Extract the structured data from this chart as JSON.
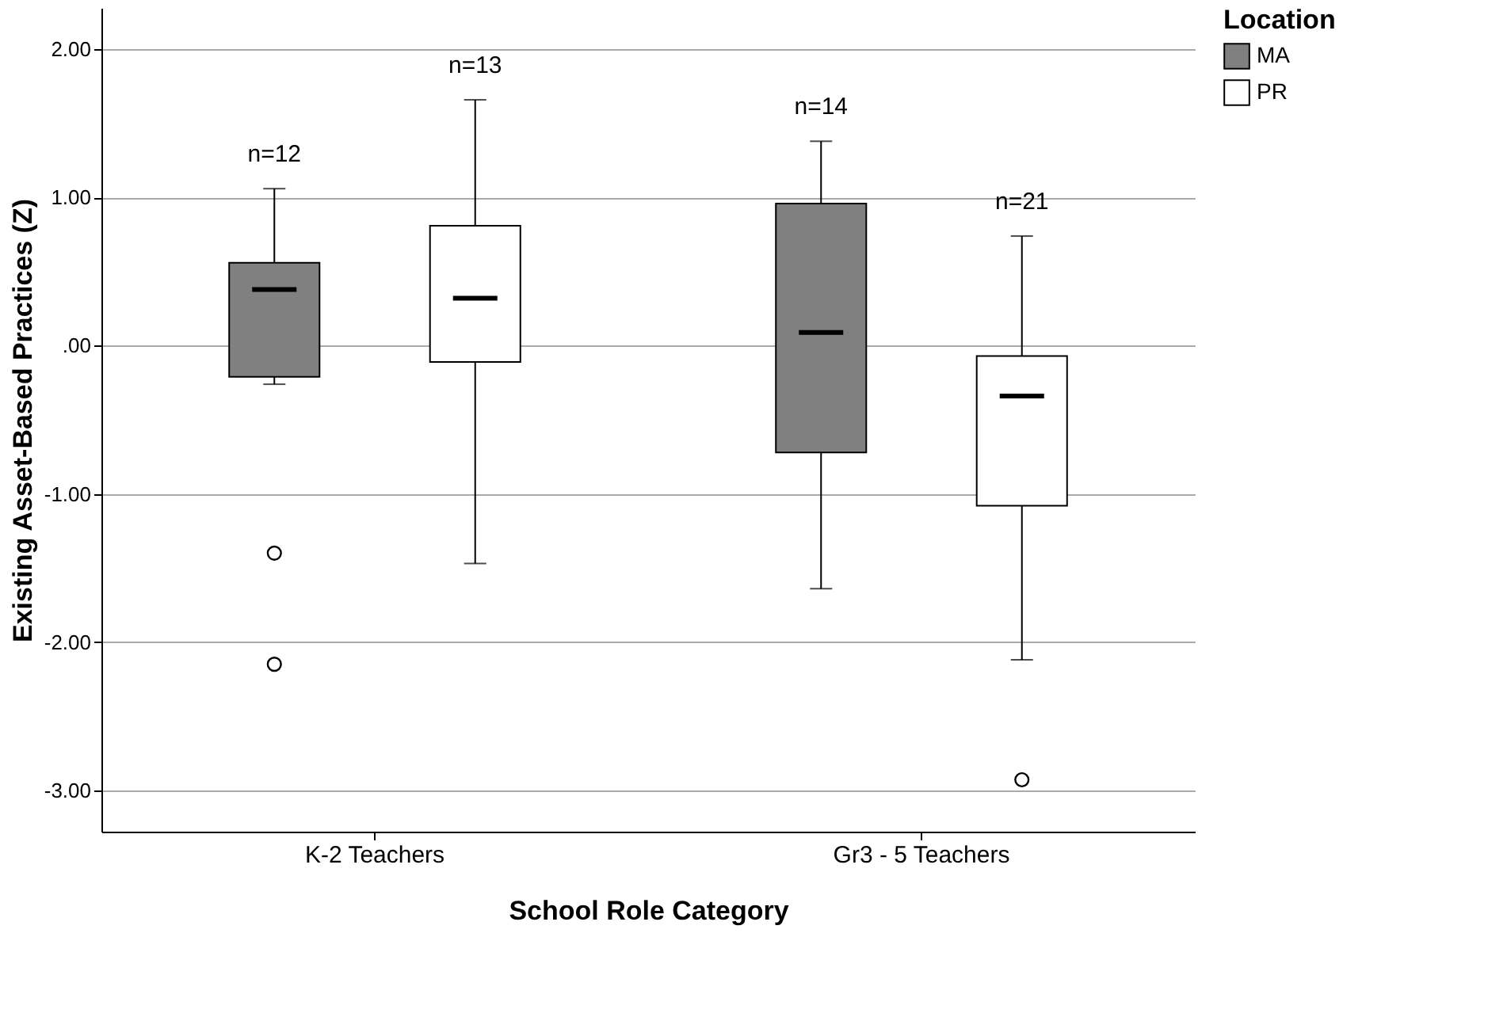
{
  "chart_data": {
    "type": "box",
    "xlabel": "School Role Category",
    "ylabel": "Existing Asset-Based Practices (Z)",
    "legend_title": "Location",
    "categories": [
      "K-2 Teachers",
      "Gr3 - 5 Teachers"
    ],
    "series": [
      {
        "name": "MA",
        "color": "#808080",
        "boxes": [
          {
            "low": -0.26,
            "q1": -0.21,
            "median": 0.38,
            "q3": 0.56,
            "high": 1.06,
            "outliers": [
              -1.4,
              -2.15
            ]
          },
          {
            "low": -1.64,
            "q1": -0.72,
            "median": 0.09,
            "q3": 0.96,
            "high": 1.38
          }
        ]
      },
      {
        "name": "PR",
        "color": "#ffffff",
        "boxes": [
          {
            "low": -1.47,
            "q1": -0.11,
            "median": 0.32,
            "q3": 0.81,
            "high": 1.66
          },
          {
            "low": -2.12,
            "q1": -1.08,
            "median": -0.34,
            "q3": -0.07,
            "high": 0.74,
            "outliers": [
              -2.93
            ]
          }
        ]
      }
    ],
    "annotations": [
      "n=12",
      "n=13",
      "n=14",
      "n=21"
    ],
    "ylim": [
      -3.28,
      2.28
    ],
    "yticks": [
      {
        "value": -3,
        "label": "-3.00"
      },
      {
        "value": -2,
        "label": "-2.00"
      },
      {
        "value": -1,
        "label": "-1.00"
      },
      {
        "value": 0,
        "label": ".00"
      },
      {
        "value": 1,
        "label": "1.00"
      },
      {
        "value": 2,
        "label": "2.00"
      }
    ],
    "grid": "y",
    "legend": "top right"
  }
}
